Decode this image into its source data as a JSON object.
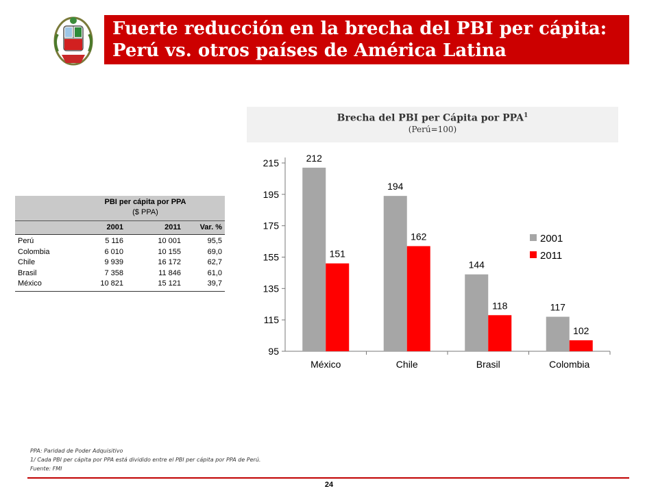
{
  "header": {
    "title_line1": "Fuerte reducción en la brecha del PBI per cápita:",
    "title_line2": "Perú vs. otros países de América Latina"
  },
  "chart_box": {
    "title": "Brecha del PBI per Cápita por PPA",
    "title_sup": "1",
    "subtitle": "(Perú=100)"
  },
  "chart_data": {
    "type": "bar",
    "categories": [
      "México",
      "Chile",
      "Brasil",
      "Colombia"
    ],
    "series": [
      {
        "name": "2001",
        "values": [
          212,
          194,
          144,
          117
        ],
        "color": "#a6a6a6"
      },
      {
        "name": "2011",
        "values": [
          151,
          162,
          118,
          102
        ],
        "color": "#ff0000"
      }
    ],
    "ylim": [
      95,
      215
    ],
    "yticks": [
      "95",
      "115",
      "135",
      "155",
      "175",
      "195",
      "215"
    ],
    "legend": "right",
    "grid": false
  },
  "table": {
    "title": "PBI per cápita por PPA",
    "unit": "($ PPA)",
    "columns": [
      "",
      "2001",
      "2011",
      "Var. %"
    ],
    "rows": [
      [
        "Perú",
        "5 116",
        "10 001",
        "95,5"
      ],
      [
        "Colombia",
        "6 010",
        "10 155",
        "69,0"
      ],
      [
        "Chile",
        "9 939",
        "16 172",
        "62,7"
      ],
      [
        "Brasil",
        "7 358",
        "11 846",
        "61,0"
      ],
      [
        "México",
        "10 821",
        "15 121",
        "39,7"
      ]
    ]
  },
  "notes": {
    "line1": "PPA: Paridad de Poder Adquisitivo",
    "line2": "1/ Cada PBI per cápita por PPA está dividido entre el PBI per cápita por PPA de Perú.",
    "line3": "Fuente: FMI"
  },
  "footer": {
    "page": "24"
  },
  "colors": {
    "brand_red": "#cc0000",
    "bar_2001": "#a6a6a6",
    "bar_2011": "#ff0000"
  }
}
